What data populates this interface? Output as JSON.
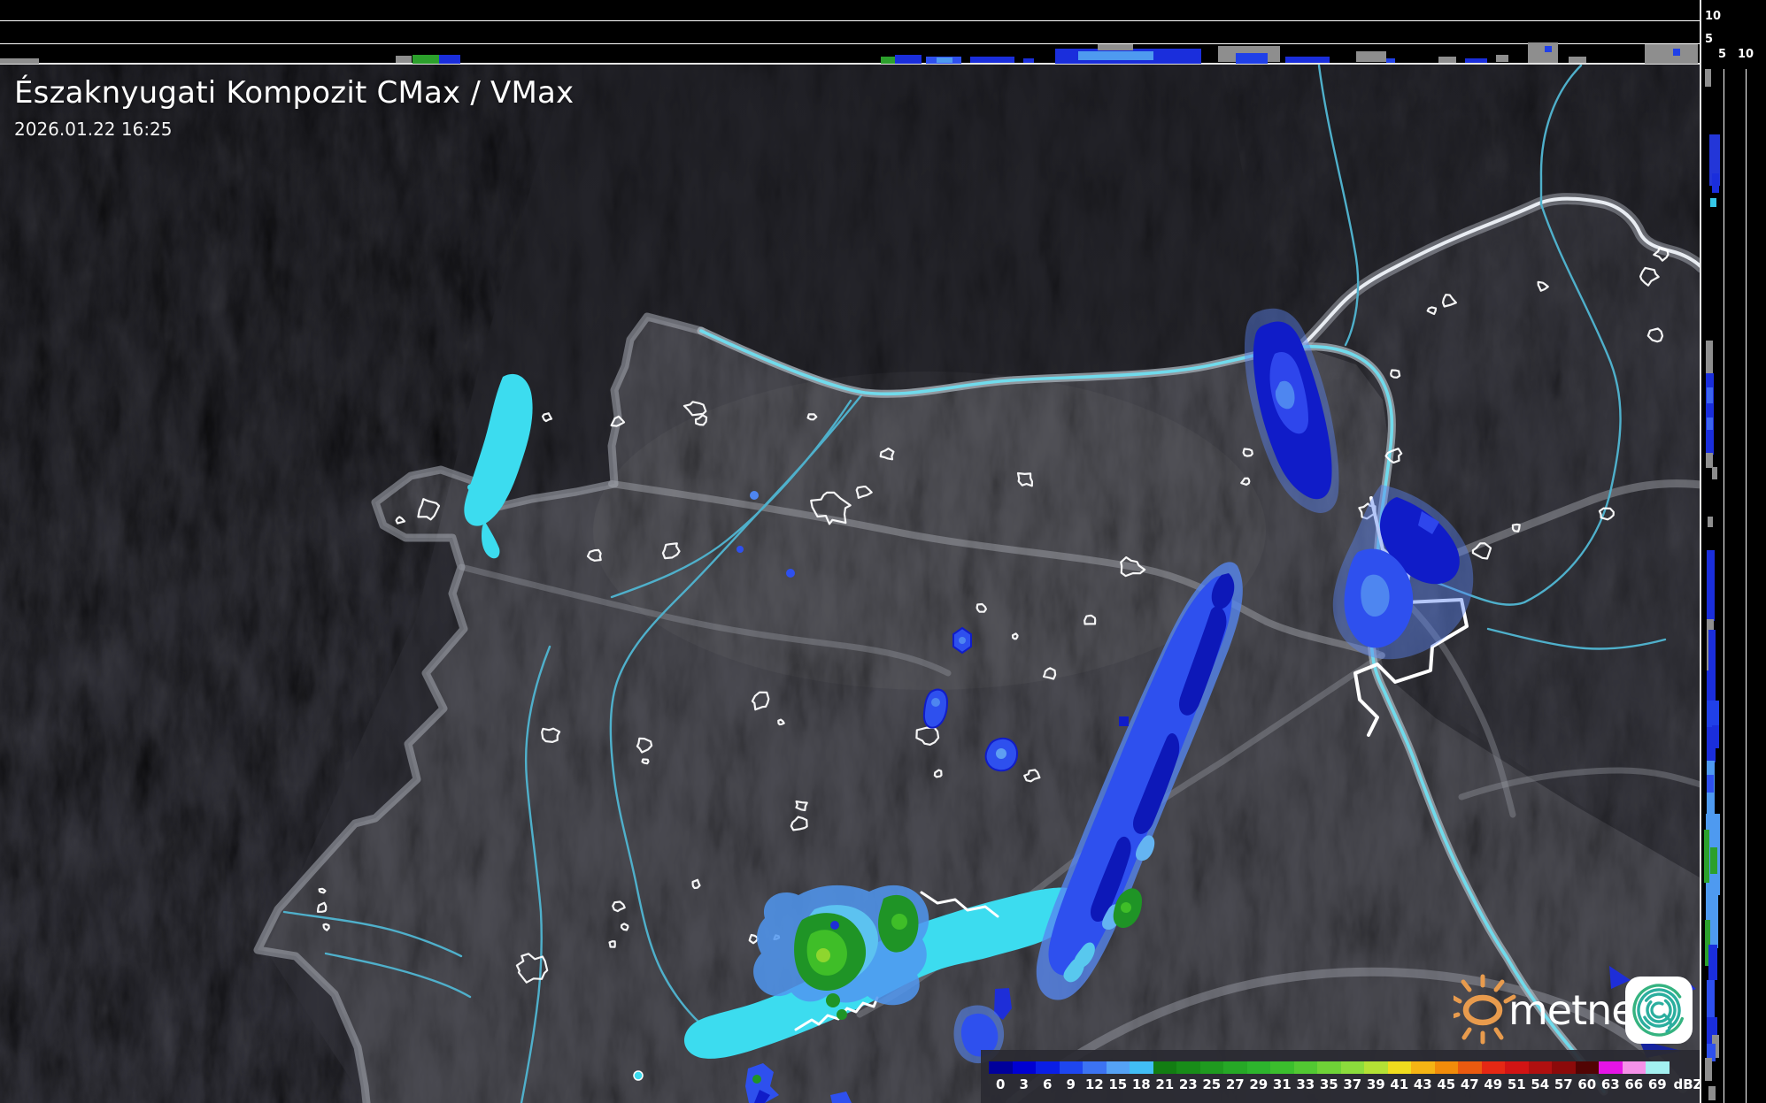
{
  "header": {
    "title": "Északnyugati Kompozit CMax / VMax",
    "timestamp": "2026.01.22 16:25"
  },
  "profile_axes": {
    "top_strip": {
      "tick_10": "10",
      "tick_5": "5"
    },
    "right_strip": {
      "tick_5": "5",
      "tick_10": "10"
    }
  },
  "colorbar": {
    "unit": "dBZ",
    "levels": [
      {
        "label": "0",
        "color": "#00009B"
      },
      {
        "label": "3",
        "color": "#0000D2"
      },
      {
        "label": "6",
        "color": "#0A1EE6"
      },
      {
        "label": "9",
        "color": "#1E46F0"
      },
      {
        "label": "12",
        "color": "#3C73F2"
      },
      {
        "label": "15",
        "color": "#55A2F5"
      },
      {
        "label": "18",
        "color": "#41BEF5"
      },
      {
        "label": "21",
        "color": "#127D12"
      },
      {
        "label": "23",
        "color": "#188C18"
      },
      {
        "label": "25",
        "color": "#1F9A1F"
      },
      {
        "label": "27",
        "color": "#26A826"
      },
      {
        "label": "29",
        "color": "#2DB42D"
      },
      {
        "label": "31",
        "color": "#3BBE2D"
      },
      {
        "label": "33",
        "color": "#52C832"
      },
      {
        "label": "35",
        "color": "#6FD237"
      },
      {
        "label": "37",
        "color": "#8CDC3C"
      },
      {
        "label": "39",
        "color": "#B4E135"
      },
      {
        "label": "41",
        "color": "#F0DC1E"
      },
      {
        "label": "43",
        "color": "#F5B414"
      },
      {
        "label": "45",
        "color": "#F28C0A"
      },
      {
        "label": "47",
        "color": "#EB5A0F"
      },
      {
        "label": "49",
        "color": "#E62814"
      },
      {
        "label": "51",
        "color": "#D21414"
      },
      {
        "label": "54",
        "color": "#B01010"
      },
      {
        "label": "57",
        "color": "#8C0A0A"
      },
      {
        "label": "60",
        "color": "#520404"
      },
      {
        "label": "63",
        "color": "#E614E6"
      },
      {
        "label": "66",
        "color": "#F591E8"
      },
      {
        "label": "69",
        "color": "#A3F0F0"
      }
    ]
  },
  "branding": {
    "wordmark": "metnet",
    "sun_color": "#E89B4D",
    "spiral_color": "#2BAE9E"
  },
  "map_colors": {
    "lake": "#3CDCEF",
    "river": "#4FB0CB",
    "danube_core": "#70DBEC"
  }
}
